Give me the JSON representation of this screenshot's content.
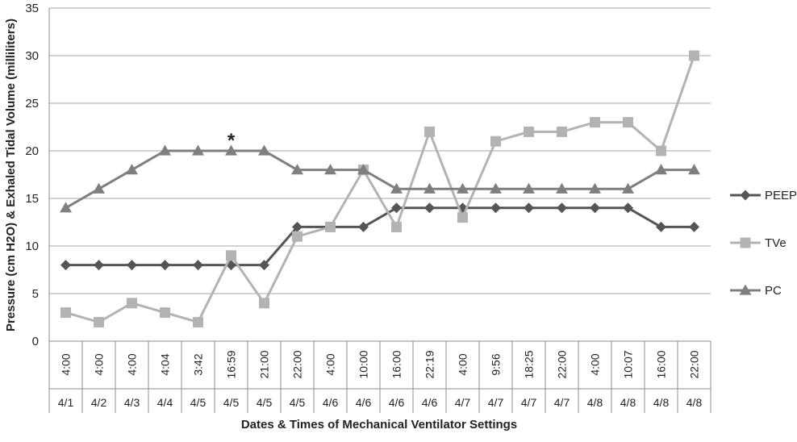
{
  "chart_data": {
    "type": "line",
    "xlabel": "Dates & Times of Mechanical Ventilator Settings",
    "ylabel": "Pressure (cm H2O) & Exhaled Tidal Volume (milliliters)",
    "ylim": [
      0,
      35
    ],
    "yticks": [
      0,
      5,
      10,
      15,
      20,
      25,
      30,
      35
    ],
    "grid": "horizontal",
    "legend_position": "right",
    "times": [
      "4:00",
      "4:00",
      "4:00",
      "4:04",
      "3:42",
      "16:59",
      "21:00",
      "22:00",
      "4:00",
      "10:00",
      "16:00",
      "22:19",
      "4:00",
      "9:56",
      "18:25",
      "22:00",
      "4:00",
      "10:07",
      "16:00",
      "22:00"
    ],
    "dates": [
      "4/1",
      "4/2",
      "4/3",
      "4/4",
      "4/5",
      "4/5",
      "4/5",
      "4/5",
      "4/6",
      "4/6",
      "4/6",
      "4/6",
      "4/7",
      "4/7",
      "4/7",
      "4/7",
      "4/8",
      "4/8",
      "4/8",
      "4/8"
    ],
    "series": [
      {
        "name": "PEEP",
        "marker": "diamond",
        "color": "#555555",
        "values": [
          8,
          8,
          8,
          8,
          8,
          8,
          8,
          12,
          12,
          12,
          14,
          14,
          14,
          14,
          14,
          14,
          14,
          14,
          12,
          12
        ]
      },
      {
        "name": "TVe",
        "marker": "square",
        "color": "#b3b3b3",
        "values": [
          3,
          2,
          4,
          3,
          2,
          9,
          4,
          11,
          12,
          18,
          12,
          22,
          13,
          21,
          22,
          22,
          23,
          23,
          20,
          30
        ]
      },
      {
        "name": "PC",
        "marker": "triangle",
        "color": "#7f7f7f",
        "values": [
          14,
          16,
          18,
          20,
          20,
          20,
          20,
          18,
          18,
          18,
          16,
          16,
          16,
          16,
          16,
          16,
          16,
          16,
          18,
          18
        ]
      }
    ],
    "annotations": [
      {
        "text": "*",
        "index": 5,
        "y": 20
      }
    ]
  }
}
